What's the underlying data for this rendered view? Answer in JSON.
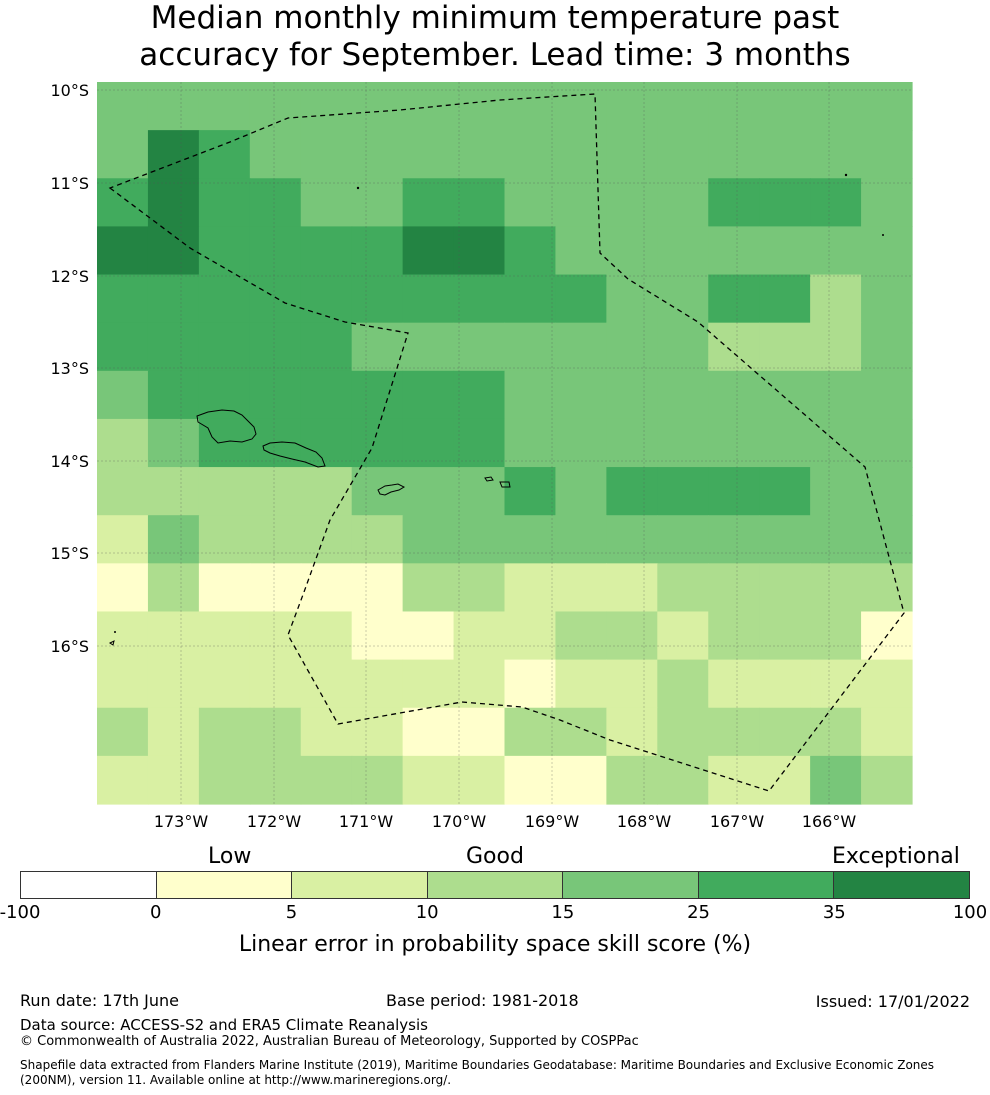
{
  "title": {
    "line1": "Median monthly minimum temperature past",
    "line2": "accuracy for September. Lead time: 3 months"
  },
  "map": {
    "lat_labels": [
      "10°S",
      "11°S",
      "12°S",
      "13°S",
      "14°S",
      "15°S",
      "16°S"
    ],
    "lon_labels": [
      "173°W",
      "172°W",
      "171°W",
      "170°W",
      "169°W",
      "168°W",
      "167°W",
      "166°W"
    ],
    "class_colors": [
      "#ffffff",
      "#ffffcc",
      "#d9f0a3",
      "#addd8e",
      "#78c679",
      "#41ab5d",
      "#238443"
    ],
    "grid_classes": [
      [
        4,
        4,
        4,
        4,
        4,
        4,
        4,
        4,
        4,
        4,
        4,
        4,
        4,
        4,
        4,
        4
      ],
      [
        4,
        6,
        5,
        4,
        4,
        4,
        4,
        4,
        4,
        4,
        4,
        4,
        4,
        4,
        4,
        4
      ],
      [
        5,
        6,
        5,
        5,
        4,
        4,
        5,
        5,
        4,
        4,
        4,
        4,
        5,
        5,
        5,
        4
      ],
      [
        6,
        6,
        5,
        5,
        5,
        5,
        6,
        6,
        5,
        4,
        4,
        4,
        4,
        4,
        4,
        4
      ],
      [
        5,
        5,
        5,
        5,
        5,
        5,
        5,
        5,
        5,
        5,
        4,
        4,
        5,
        5,
        3,
        4
      ],
      [
        5,
        5,
        5,
        5,
        5,
        4,
        4,
        4,
        4,
        4,
        4,
        4,
        3,
        3,
        3,
        4
      ],
      [
        4,
        5,
        5,
        5,
        5,
        5,
        5,
        5,
        4,
        4,
        4,
        4,
        4,
        4,
        4,
        4
      ],
      [
        3,
        4,
        5,
        5,
        5,
        5,
        5,
        5,
        4,
        4,
        4,
        4,
        4,
        4,
        4,
        4
      ],
      [
        3,
        3,
        3,
        3,
        3,
        4,
        4,
        4,
        5,
        4,
        5,
        5,
        5,
        5,
        4,
        4
      ],
      [
        2,
        4,
        3,
        3,
        3,
        3,
        4,
        4,
        4,
        4,
        4,
        4,
        4,
        4,
        4,
        4
      ],
      [
        1,
        3,
        1,
        1,
        1,
        1,
        3,
        3,
        2,
        2,
        2,
        3,
        3,
        3,
        3,
        3
      ],
      [
        2,
        2,
        2,
        2,
        2,
        1,
        1,
        2,
        2,
        3,
        3,
        2,
        3,
        3,
        3,
        1
      ],
      [
        2,
        2,
        2,
        2,
        2,
        2,
        2,
        2,
        1,
        2,
        2,
        3,
        2,
        2,
        2,
        2
      ],
      [
        3,
        2,
        3,
        3,
        2,
        2,
        1,
        1,
        3,
        3,
        2,
        3,
        3,
        3,
        3,
        2
      ],
      [
        2,
        2,
        3,
        3,
        3,
        3,
        2,
        2,
        1,
        1,
        3,
        3,
        2,
        2,
        4,
        3
      ]
    ]
  },
  "colorbar": {
    "categories": [
      "Low",
      "Good",
      "Exceptional"
    ],
    "ticks": [
      "-100",
      "0",
      "5",
      "10",
      "15",
      "25",
      "35",
      "100"
    ],
    "colors": [
      "#ffffff",
      "#ffffcc",
      "#d9f0a3",
      "#addd8e",
      "#78c679",
      "#41ab5d",
      "#238443"
    ],
    "label": "Linear error in probability space skill score (%)"
  },
  "footer": {
    "run_date": "Run date: 17th June",
    "base_period": "Base period: 1981-2018",
    "issued": "Issued: 17/01/2022",
    "data_source": "Data source: ACCESS-S2 and ERA5 Climate Reanalysis",
    "copyright": "© Commonwealth of Australia 2022, Australian Bureau of Meteorology, Supported by COSPPac",
    "shapefile": "Shapefile data extracted from Flanders Marine Institute (2019), Maritime Boundaries Geodatabase: Maritime Boundaries and Exclusive Economic Zones (200NM), version 11. Available online at http://www.marineregions.org/."
  }
}
